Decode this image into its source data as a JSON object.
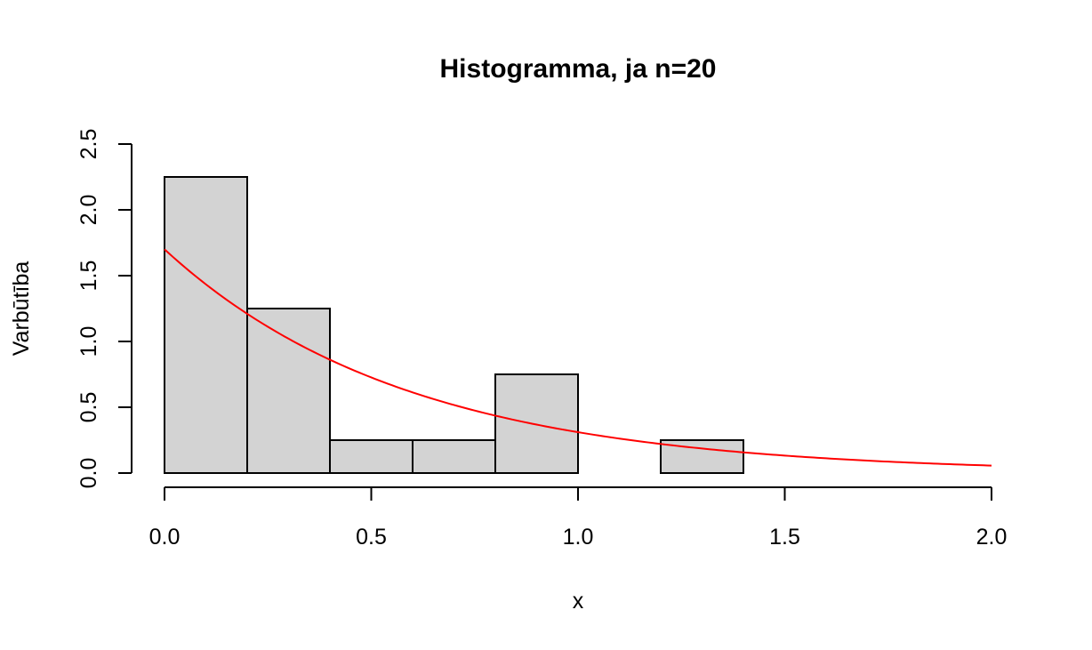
{
  "chart_data": {
    "type": "bar",
    "subtype": "histogram",
    "title": "Histogramma, ja n=20",
    "xlabel": "x",
    "ylabel": "Varbūtība",
    "xlim": [
      0,
      2
    ],
    "ylim": [
      0,
      2.5
    ],
    "x_ticks": [
      0.0,
      0.5,
      1.0,
      1.5,
      2.0
    ],
    "x_tick_labels": [
      "0.0",
      "0.5",
      "1.0",
      "1.5",
      "2.0"
    ],
    "y_ticks": [
      0.0,
      0.5,
      1.0,
      1.5,
      2.0,
      2.5
    ],
    "y_tick_labels": [
      "0.0",
      "0.5",
      "1.0",
      "1.5",
      "2.0",
      "2.5"
    ],
    "grid": false,
    "bins": [
      {
        "x0": 0.0,
        "x1": 0.2,
        "density": 2.25
      },
      {
        "x0": 0.2,
        "x1": 0.4,
        "density": 1.25
      },
      {
        "x0": 0.4,
        "x1": 0.6,
        "density": 0.25
      },
      {
        "x0": 0.6,
        "x1": 0.8,
        "density": 0.25
      },
      {
        "x0": 0.8,
        "x1": 1.0,
        "density": 0.75
      },
      {
        "x0": 1.0,
        "x1": 1.2,
        "density": 0.0
      },
      {
        "x0": 1.2,
        "x1": 1.4,
        "density": 0.25
      }
    ],
    "bar_color": "#d3d3d3",
    "curve": {
      "function": "exponential density",
      "rate": 1.7,
      "color": "#ff0000",
      "x_range": [
        0,
        2
      ]
    }
  }
}
